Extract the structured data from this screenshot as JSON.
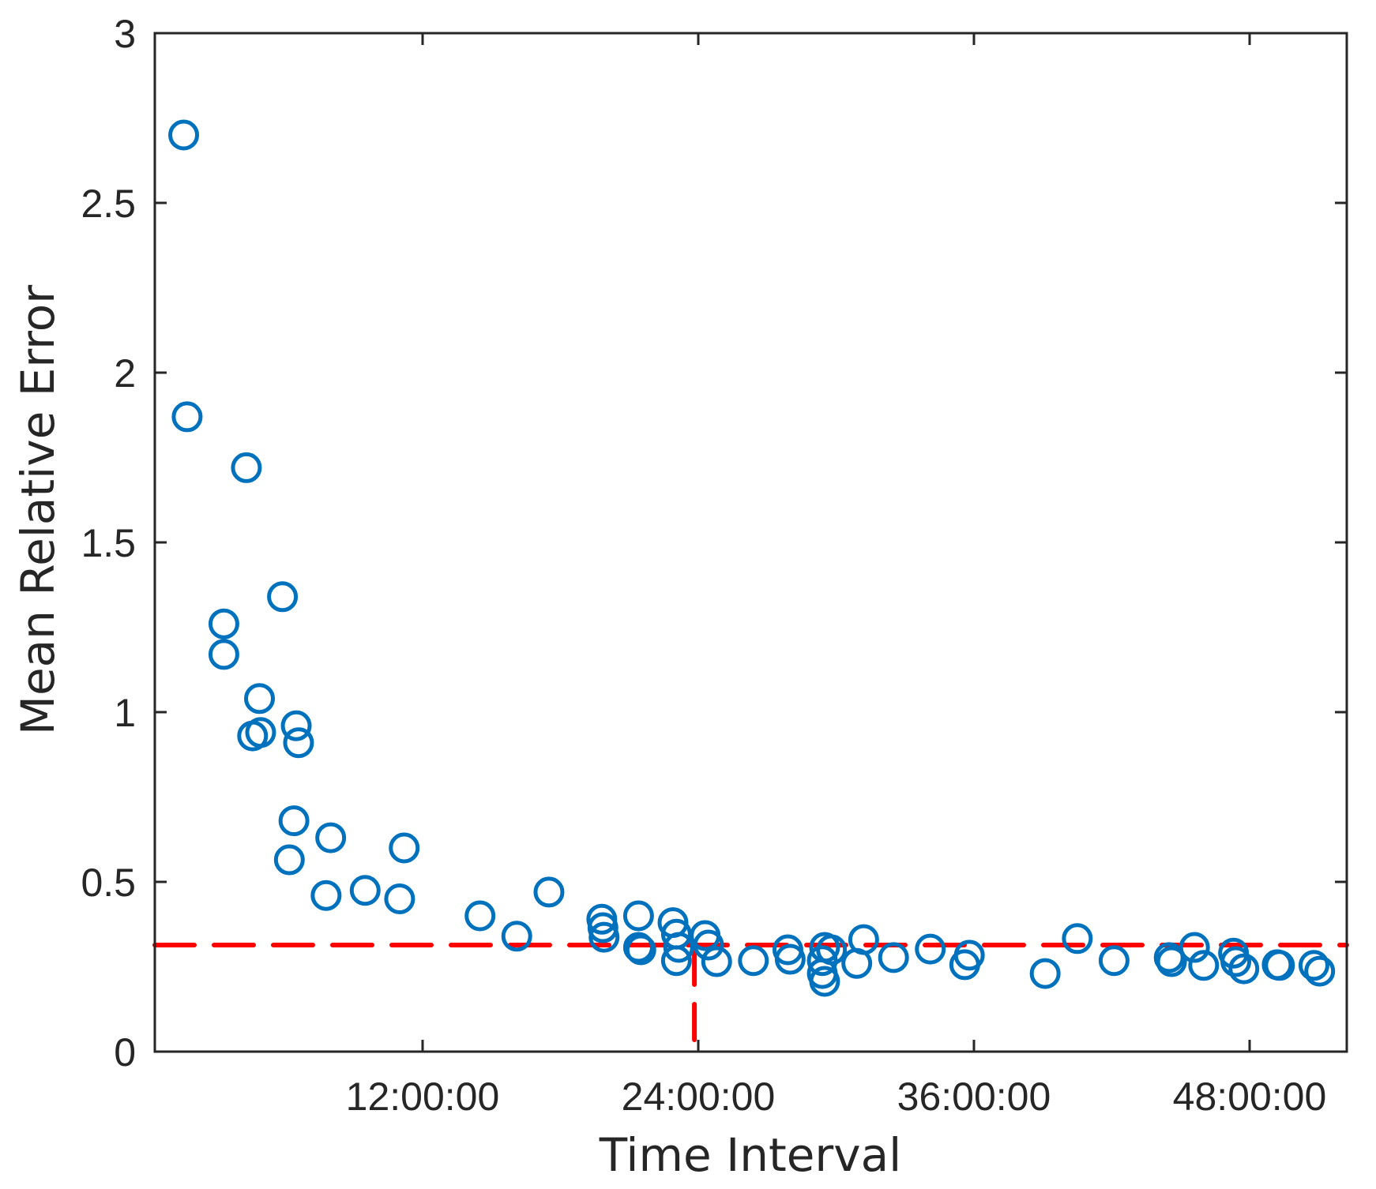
{
  "chart_data": {
    "type": "scatter",
    "title": "",
    "xlabel": "Time Interval",
    "ylabel": "Mean Relative Error",
    "x_unit": "hours",
    "xlim": [
      0.34,
      52.2
    ],
    "ylim": [
      0,
      3
    ],
    "grid": false,
    "legend": null,
    "x_ticks": [
      {
        "value": 12,
        "label": "12:00:00"
      },
      {
        "value": 24,
        "label": "24:00:00"
      },
      {
        "value": 36,
        "label": "36:00:00"
      },
      {
        "value": 48,
        "label": "48:00:00"
      }
    ],
    "y_ticks": [
      {
        "value": 0,
        "label": "0"
      },
      {
        "value": 0.5,
        "label": "0.5"
      },
      {
        "value": 1,
        "label": "1"
      },
      {
        "value": 1.5,
        "label": "1.5"
      },
      {
        "value": 2,
        "label": "2"
      },
      {
        "value": 2.5,
        "label": "2.5"
      },
      {
        "value": 3,
        "label": "3"
      }
    ],
    "marker": {
      "shape": "open-circle",
      "color": "#0072BD"
    },
    "reference_lines": [
      {
        "orientation": "horizontal",
        "value": 0.314,
        "style": "dashed",
        "color": "#FF0000"
      },
      {
        "orientation": "vertical",
        "value": 23.9,
        "from": 0,
        "to": 0.314,
        "style": "dashed",
        "color": "#FF0000"
      }
    ],
    "points": [
      {
        "x": 1.6,
        "y": 2.7
      },
      {
        "x": 1.75,
        "y": 1.87
      },
      {
        "x": 3.35,
        "y": 1.26
      },
      {
        "x": 3.35,
        "y": 1.17
      },
      {
        "x": 4.33,
        "y": 1.72
      },
      {
        "x": 4.6,
        "y": 0.93
      },
      {
        "x": 4.95,
        "y": 0.94
      },
      {
        "x": 4.9,
        "y": 1.04
      },
      {
        "x": 5.9,
        "y": 1.34
      },
      {
        "x": 6.5,
        "y": 0.96
      },
      {
        "x": 6.6,
        "y": 0.91
      },
      {
        "x": 6.4,
        "y": 0.68
      },
      {
        "x": 6.2,
        "y": 0.565
      },
      {
        "x": 8.0,
        "y": 0.63
      },
      {
        "x": 7.8,
        "y": 0.46
      },
      {
        "x": 9.5,
        "y": 0.475
      },
      {
        "x": 11.0,
        "y": 0.45
      },
      {
        "x": 11.2,
        "y": 0.6
      },
      {
        "x": 14.5,
        "y": 0.4
      },
      {
        "x": 16.1,
        "y": 0.34
      },
      {
        "x": 17.5,
        "y": 0.47
      },
      {
        "x": 19.8,
        "y": 0.39
      },
      {
        "x": 19.85,
        "y": 0.365
      },
      {
        "x": 19.9,
        "y": 0.337
      },
      {
        "x": 21.4,
        "y": 0.4
      },
      {
        "x": 21.4,
        "y": 0.307
      },
      {
        "x": 21.5,
        "y": 0.3
      },
      {
        "x": 22.9,
        "y": 0.38
      },
      {
        "x": 23.05,
        "y": 0.346
      },
      {
        "x": 23.05,
        "y": 0.268
      },
      {
        "x": 23.15,
        "y": 0.307
      },
      {
        "x": 24.3,
        "y": 0.342
      },
      {
        "x": 24.45,
        "y": 0.314
      },
      {
        "x": 24.8,
        "y": 0.265
      },
      {
        "x": 26.4,
        "y": 0.268
      },
      {
        "x": 27.9,
        "y": 0.3
      },
      {
        "x": 28.0,
        "y": 0.272
      },
      {
        "x": 29.5,
        "y": 0.307
      },
      {
        "x": 29.4,
        "y": 0.268
      },
      {
        "x": 29.4,
        "y": 0.23
      },
      {
        "x": 29.5,
        "y": 0.207
      },
      {
        "x": 29.8,
        "y": 0.3
      },
      {
        "x": 31.2,
        "y": 0.33
      },
      {
        "x": 30.9,
        "y": 0.26
      },
      {
        "x": 32.5,
        "y": 0.277
      },
      {
        "x": 34.1,
        "y": 0.302
      },
      {
        "x": 35.8,
        "y": 0.284
      },
      {
        "x": 35.6,
        "y": 0.256
      },
      {
        "x": 39.1,
        "y": 0.23
      },
      {
        "x": 40.5,
        "y": 0.333
      },
      {
        "x": 42.1,
        "y": 0.268
      },
      {
        "x": 44.5,
        "y": 0.277
      },
      {
        "x": 44.6,
        "y": 0.265
      },
      {
        "x": 45.6,
        "y": 0.307
      },
      {
        "x": 46.0,
        "y": 0.254
      },
      {
        "x": 47.3,
        "y": 0.29
      },
      {
        "x": 47.4,
        "y": 0.265
      },
      {
        "x": 47.75,
        "y": 0.244
      },
      {
        "x": 49.2,
        "y": 0.256
      },
      {
        "x": 49.3,
        "y": 0.254
      },
      {
        "x": 50.8,
        "y": 0.254
      },
      {
        "x": 51.05,
        "y": 0.237
      }
    ]
  }
}
